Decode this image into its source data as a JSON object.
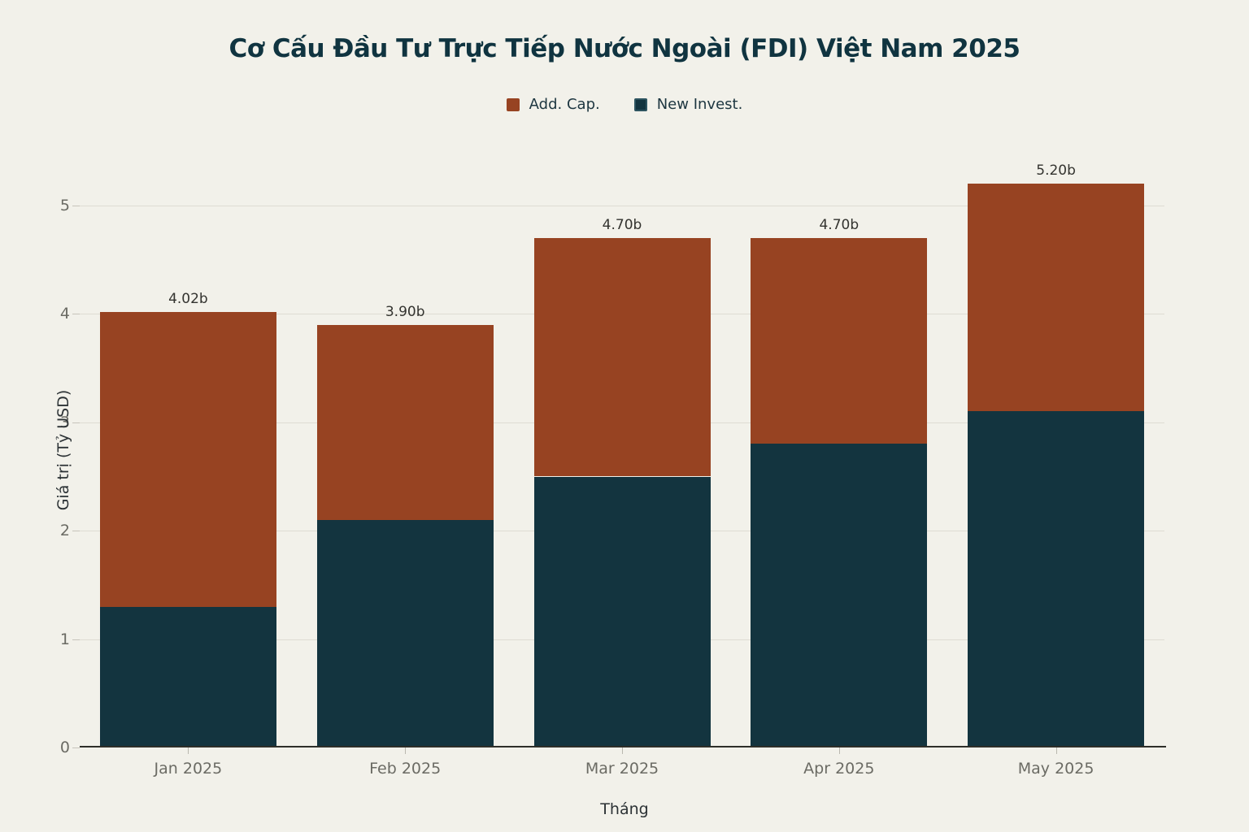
{
  "chart": {
    "title": "Cơ Cấu Đầu Tư Trực Tiếp Nước Ngoài (FDI) Việt Nam 2025",
    "legend": [
      {
        "label": "Add. Cap.",
        "color": "#974322"
      },
      {
        "label": "New Invest.",
        "color": "#13343f"
      }
    ],
    "xlabel": "Tháng",
    "ylabel": "Giá trị (Tỷ USD)"
  },
  "chart_data": {
    "type": "bar",
    "stacked": true,
    "title": "Cơ Cấu Đầu Tư Trực Tiếp Nước Ngoài (FDI) Việt Nam 2025",
    "xlabel": "Tháng",
    "ylabel": "Giá trị (Tỷ USD)",
    "categories": [
      "Jan 2025",
      "Feb 2025",
      "Mar 2025",
      "Apr 2025",
      "May 2025"
    ],
    "series": [
      {
        "name": "New Invest.",
        "color": "#13343f",
        "values": [
          1.3,
          2.1,
          2.5,
          2.8,
          3.1
        ]
      },
      {
        "name": "Add. Cap.",
        "color": "#974322",
        "values": [
          2.72,
          1.8,
          2.2,
          1.9,
          2.1
        ]
      }
    ],
    "totals": [
      4.02,
      3.9,
      4.7,
      4.7,
      5.2
    ],
    "total_labels": [
      "4.02b",
      "3.90b",
      "4.70b",
      "4.70b",
      "5.20b"
    ],
    "ylim": [
      0,
      5
    ],
    "yticks": [
      0,
      1,
      2,
      3,
      4,
      5
    ],
    "grid": true,
    "legend_position": "top-center",
    "background": "#f2f1ea"
  }
}
